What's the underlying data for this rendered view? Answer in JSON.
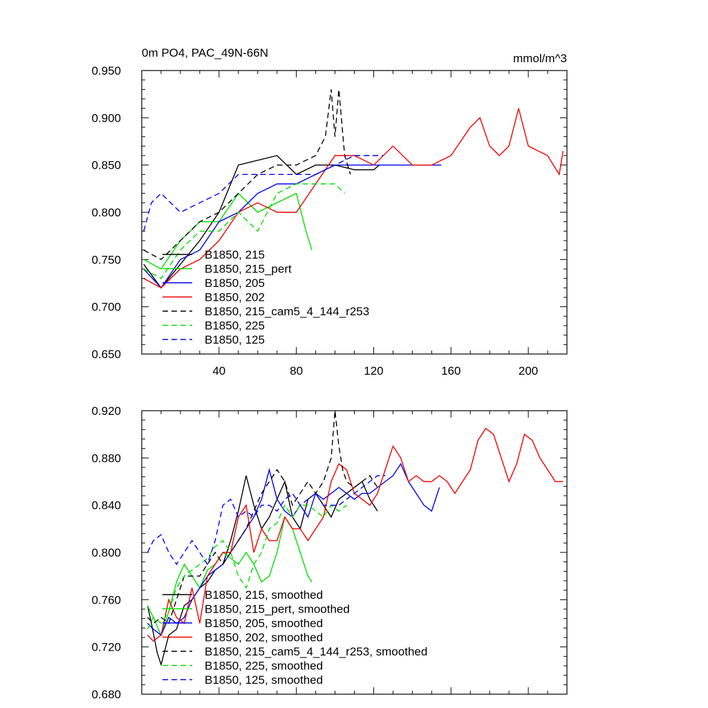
{
  "chart_data": [
    {
      "type": "line",
      "title": "0m PO4, PAC_49N-66N",
      "units": "mmol/m^3",
      "xlabel": "",
      "ylabel": "",
      "xlim": [
        0,
        220
      ],
      "ylim": [
        0.65,
        0.95
      ],
      "xticks": [
        40,
        80,
        120,
        160,
        200
      ],
      "xtick_labels": [
        "40",
        "80",
        "120",
        "160",
        "200"
      ],
      "yticks": [
        0.65,
        0.7,
        0.75,
        0.8,
        0.85,
        0.9,
        0.95
      ],
      "ytick_labels": [
        "0.650",
        "0.700",
        "0.750",
        "0.800",
        "0.850",
        "0.900",
        "0.950"
      ],
      "legend_position": "bottom-left",
      "series": [
        {
          "name": "B1850, 215",
          "color": "#000000",
          "dash": "solid",
          "x": [
            1,
            10,
            20,
            30,
            40,
            50,
            60,
            70,
            80,
            90,
            100,
            110,
            120,
            123
          ],
          "values": [
            0.745,
            0.72,
            0.745,
            0.77,
            0.8,
            0.85,
            0.855,
            0.86,
            0.84,
            0.85,
            0.85,
            0.845,
            0.845,
            0.85
          ]
        },
        {
          "name": "B1850, 215_pert",
          "color": "#00dd00",
          "dash": "solid",
          "x": [
            1,
            10,
            20,
            30,
            40,
            50,
            60,
            70,
            80,
            85,
            88
          ],
          "values": [
            0.75,
            0.74,
            0.77,
            0.79,
            0.79,
            0.82,
            0.8,
            0.81,
            0.82,
            0.78,
            0.76
          ]
        },
        {
          "name": "B1850, 205",
          "color": "#0000ee",
          "dash": "solid",
          "x": [
            1,
            10,
            20,
            30,
            40,
            50,
            60,
            70,
            80,
            90,
            100,
            110,
            120,
            130,
            140,
            150,
            155
          ],
          "values": [
            0.74,
            0.72,
            0.75,
            0.76,
            0.79,
            0.8,
            0.82,
            0.83,
            0.83,
            0.84,
            0.85,
            0.85,
            0.85,
            0.85,
            0.85,
            0.85,
            0.85
          ]
        },
        {
          "name": "B1850, 202",
          "color": "#ee0000",
          "dash": "solid",
          "x": [
            1,
            10,
            20,
            30,
            40,
            50,
            60,
            70,
            80,
            90,
            100,
            110,
            120,
            130,
            140,
            150,
            160,
            170,
            175,
            180,
            185,
            190,
            195,
            200,
            210,
            216,
            218
          ],
          "values": [
            0.73,
            0.72,
            0.74,
            0.75,
            0.77,
            0.8,
            0.81,
            0.8,
            0.8,
            0.83,
            0.86,
            0.86,
            0.85,
            0.87,
            0.85,
            0.85,
            0.86,
            0.89,
            0.9,
            0.87,
            0.86,
            0.87,
            0.91,
            0.87,
            0.86,
            0.84,
            0.865
          ]
        },
        {
          "name": "B1850, 215_cam5_4_144_r253",
          "color": "#000000",
          "dash": "dashed",
          "x": [
            1,
            10,
            20,
            30,
            40,
            50,
            60,
            70,
            80,
            90,
            95,
            98,
            100,
            102,
            105,
            108
          ],
          "values": [
            0.76,
            0.75,
            0.77,
            0.79,
            0.8,
            0.82,
            0.84,
            0.85,
            0.85,
            0.86,
            0.88,
            0.93,
            0.88,
            0.93,
            0.86,
            0.84
          ]
        },
        {
          "name": "B1850, 225",
          "color": "#00dd00",
          "dash": "dashed",
          "x": [
            1,
            10,
            20,
            30,
            40,
            50,
            60,
            70,
            80,
            90,
            100,
            105
          ],
          "values": [
            0.74,
            0.73,
            0.76,
            0.78,
            0.78,
            0.8,
            0.78,
            0.82,
            0.83,
            0.83,
            0.83,
            0.82
          ]
        },
        {
          "name": "B1850, 125",
          "color": "#0000ee",
          "dash": "dashed",
          "x": [
            1,
            5,
            10,
            20,
            30,
            40,
            50,
            60,
            70,
            80,
            90,
            100,
            110,
            120,
            125
          ],
          "values": [
            0.78,
            0.81,
            0.82,
            0.8,
            0.81,
            0.82,
            0.84,
            0.84,
            0.84,
            0.84,
            0.84,
            0.85,
            0.86,
            0.86,
            0.86
          ]
        }
      ]
    },
    {
      "type": "line",
      "title": "",
      "xlabel": "",
      "ylabel": "",
      "xlim": [
        0,
        220
      ],
      "ylim": [
        0.68,
        0.92
      ],
      "xticks": [
        40,
        80,
        120,
        160,
        200
      ],
      "xtick_labels": [],
      "yticks": [
        0.68,
        0.72,
        0.76,
        0.8,
        0.84,
        0.88,
        0.92
      ],
      "ytick_labels": [
        "0.680",
        "0.720",
        "0.760",
        "0.800",
        "0.840",
        "0.880",
        "0.920"
      ],
      "legend_position": "bottom-left",
      "series": [
        {
          "name": "B1850, 215, smoothed",
          "color": "#000000",
          "dash": "solid",
          "x": [
            3,
            5,
            8,
            10,
            14,
            18,
            22,
            26,
            30,
            34,
            38,
            42,
            46,
            50,
            54,
            58,
            62,
            66,
            70,
            74,
            78,
            82,
            86,
            90,
            94,
            98,
            102,
            106,
            110,
            114,
            118,
            122
          ],
          "values": [
            0.755,
            0.74,
            0.715,
            0.705,
            0.73,
            0.735,
            0.755,
            0.76,
            0.77,
            0.775,
            0.785,
            0.79,
            0.81,
            0.835,
            0.865,
            0.84,
            0.82,
            0.83,
            0.845,
            0.86,
            0.83,
            0.82,
            0.845,
            0.85,
            0.84,
            0.83,
            0.845,
            0.85,
            0.855,
            0.86,
            0.845,
            0.835
          ]
        },
        {
          "name": "B1850, 215_pert, smoothed",
          "color": "#00dd00",
          "dash": "solid",
          "x": [
            3,
            6,
            10,
            14,
            18,
            22,
            26,
            30,
            34,
            38,
            42,
            46,
            50,
            54,
            58,
            62,
            66,
            70,
            74,
            78,
            82,
            86,
            88
          ],
          "values": [
            0.755,
            0.745,
            0.73,
            0.75,
            0.775,
            0.79,
            0.78,
            0.77,
            0.785,
            0.79,
            0.8,
            0.795,
            0.79,
            0.8,
            0.79,
            0.775,
            0.78,
            0.8,
            0.83,
            0.82,
            0.8,
            0.78,
            0.775
          ]
        },
        {
          "name": "B1850, 205, smoothed",
          "color": "#0000ee",
          "dash": "solid",
          "x": [
            3,
            6,
            10,
            14,
            18,
            22,
            26,
            30,
            34,
            38,
            42,
            46,
            50,
            54,
            58,
            62,
            66,
            70,
            74,
            78,
            82,
            86,
            90,
            94,
            98,
            102,
            106,
            110,
            114,
            118,
            122,
            126,
            130,
            134,
            138,
            142,
            146,
            150,
            154
          ],
          "values": [
            0.74,
            0.735,
            0.73,
            0.745,
            0.74,
            0.745,
            0.76,
            0.77,
            0.78,
            0.785,
            0.79,
            0.8,
            0.81,
            0.82,
            0.83,
            0.845,
            0.87,
            0.845,
            0.835,
            0.83,
            0.84,
            0.83,
            0.85,
            0.845,
            0.85,
            0.855,
            0.85,
            0.845,
            0.85,
            0.85,
            0.855,
            0.86,
            0.865,
            0.875,
            0.86,
            0.85,
            0.84,
            0.835,
            0.855
          ]
        },
        {
          "name": "B1850, 202, smoothed",
          "color": "#ee0000",
          "dash": "solid",
          "x": [
            3,
            6,
            10,
            14,
            18,
            22,
            26,
            30,
            34,
            38,
            42,
            46,
            50,
            54,
            58,
            62,
            66,
            70,
            74,
            78,
            82,
            86,
            90,
            94,
            98,
            102,
            106,
            110,
            114,
            118,
            122,
            126,
            130,
            134,
            138,
            142,
            146,
            150,
            154,
            158,
            162,
            166,
            170,
            174,
            178,
            182,
            186,
            190,
            194,
            198,
            202,
            206,
            210,
            214,
            218
          ],
          "values": [
            0.73,
            0.725,
            0.73,
            0.76,
            0.745,
            0.74,
            0.77,
            0.74,
            0.78,
            0.79,
            0.8,
            0.8,
            0.83,
            0.84,
            0.8,
            0.82,
            0.81,
            0.81,
            0.83,
            0.82,
            0.82,
            0.81,
            0.82,
            0.83,
            0.86,
            0.875,
            0.87,
            0.85,
            0.845,
            0.84,
            0.85,
            0.87,
            0.89,
            0.88,
            0.86,
            0.865,
            0.86,
            0.86,
            0.865,
            0.86,
            0.85,
            0.86,
            0.87,
            0.895,
            0.905,
            0.9,
            0.88,
            0.86,
            0.875,
            0.9,
            0.895,
            0.88,
            0.87,
            0.86,
            0.86
          ]
        },
        {
          "name": "B1850, 215_cam5_4_144_r253, smoothed",
          "color": "#000000",
          "dash": "dashed",
          "x": [
            3,
            6,
            10,
            14,
            18,
            22,
            26,
            30,
            34,
            38,
            42,
            46,
            50,
            54,
            58,
            62,
            66,
            70,
            74,
            78,
            82,
            86,
            90,
            94,
            98,
            100,
            102,
            104,
            106,
            110,
            114,
            118,
            122
          ],
          "values": [
            0.745,
            0.74,
            0.745,
            0.74,
            0.76,
            0.78,
            0.78,
            0.78,
            0.79,
            0.8,
            0.79,
            0.8,
            0.81,
            0.82,
            0.835,
            0.85,
            0.86,
            0.87,
            0.86,
            0.84,
            0.85,
            0.86,
            0.85,
            0.86,
            0.88,
            0.92,
            0.89,
            0.87,
            0.86,
            0.855,
            0.86,
            0.865,
            0.855
          ]
        },
        {
          "name": "B1850, 225, smoothed",
          "color": "#00dd00",
          "dash": "dashed",
          "x": [
            3,
            6,
            10,
            14,
            18,
            22,
            26,
            30,
            34,
            38,
            42,
            46,
            50,
            54,
            58,
            62,
            66,
            70,
            74,
            78,
            82,
            86,
            90,
            94,
            98,
            102,
            106
          ],
          "values": [
            0.735,
            0.745,
            0.74,
            0.75,
            0.77,
            0.78,
            0.785,
            0.79,
            0.795,
            0.805,
            0.81,
            0.8,
            0.78,
            0.77,
            0.79,
            0.8,
            0.82,
            0.825,
            0.84,
            0.83,
            0.84,
            0.84,
            0.835,
            0.83,
            0.84,
            0.835,
            0.84
          ]
        },
        {
          "name": "B1850, 125, smoothed",
          "color": "#0000ee",
          "dash": "dashed",
          "x": [
            3,
            6,
            10,
            14,
            18,
            22,
            26,
            30,
            34,
            38,
            42,
            46,
            50,
            54,
            58,
            62,
            66,
            70,
            74,
            78,
            82,
            86,
            90,
            94,
            98,
            102,
            106,
            110,
            114,
            118,
            122,
            126
          ],
          "values": [
            0.8,
            0.81,
            0.815,
            0.8,
            0.79,
            0.8,
            0.81,
            0.8,
            0.79,
            0.81,
            0.84,
            0.845,
            0.83,
            0.835,
            0.83,
            0.84,
            0.84,
            0.835,
            0.845,
            0.85,
            0.84,
            0.845,
            0.85,
            0.84,
            0.84,
            0.84,
            0.845,
            0.85,
            0.855,
            0.86,
            0.865,
            0.865
          ]
        }
      ]
    }
  ]
}
